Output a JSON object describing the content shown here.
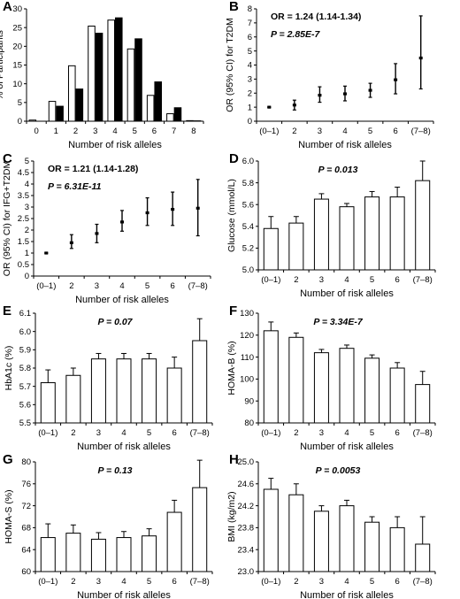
{
  "panels": [
    {
      "letter": "A",
      "chart_data": {
        "type": "bar",
        "ylabel": "% of Participants",
        "xlabel": "Number of risk alleles",
        "categories": [
          "0",
          "1",
          "2",
          "3",
          "4",
          "5",
          "6",
          "7",
          "8"
        ],
        "ylim": [
          0,
          30
        ],
        "yticks": [
          0,
          5,
          10,
          15,
          20,
          25,
          30
        ],
        "series": [
          {
            "fill": "#ffffff",
            "values": [
              0.3,
              5.3,
              14.8,
              25.4,
              27.0,
              19.3,
              6.9,
              2.0,
              0.15
            ]
          },
          {
            "fill": "#000000",
            "values": [
              0.0,
              4.0,
              8.6,
              23.5,
              27.6,
              22.0,
              10.5,
              3.6,
              0.1
            ]
          }
        ],
        "annotations": []
      }
    },
    {
      "letter": "B",
      "chart_data": {
        "type": "errorbar",
        "ylabel": "OR (95% CI) for T2DM",
        "xlabel": "Number of risk alleles",
        "categories": [
          "(0–1)",
          "2",
          "3",
          "4",
          "5",
          "6",
          "(7–8)"
        ],
        "ylim": [
          0,
          8
        ],
        "yticks": [
          0,
          1,
          2,
          3,
          4,
          5,
          6,
          7,
          8
        ],
        "values": [
          1.0,
          1.15,
          1.85,
          1.95,
          2.2,
          2.95,
          4.5
        ],
        "lower": [
          1.0,
          0.8,
          1.35,
          1.45,
          1.7,
          1.95,
          2.3
        ],
        "upper": [
          1.0,
          1.5,
          2.45,
          2.5,
          2.7,
          4.1,
          7.5
        ],
        "annotations": [
          {
            "text": "OR = 1.24 (1.14-1.34)",
            "italic": false
          },
          {
            "text": "P = 2.85E-7",
            "italic": true
          }
        ]
      }
    },
    {
      "letter": "C",
      "chart_data": {
        "type": "errorbar",
        "ylabel": "OR (95% CI) for IFG+T2DM",
        "xlabel": "Number of risk alleles",
        "categories": [
          "(0–1)",
          "2",
          "3",
          "4",
          "5",
          "6",
          "(7–8)"
        ],
        "ylim": [
          0,
          5
        ],
        "yticks": [
          0,
          0.5,
          1,
          1.5,
          2,
          2.5,
          3,
          3.5,
          4,
          4.5,
          5
        ],
        "values": [
          1.0,
          1.45,
          1.85,
          2.35,
          2.75,
          2.9,
          2.95
        ],
        "lower": [
          1.0,
          1.2,
          1.45,
          1.95,
          2.2,
          2.2,
          1.75
        ],
        "upper": [
          1.0,
          1.8,
          2.25,
          2.85,
          3.4,
          3.65,
          4.2
        ],
        "annotations": [
          {
            "text": "OR = 1.21 (1.14-1.28)",
            "italic": false
          },
          {
            "text": "P = 6.31E-11",
            "italic": true
          }
        ]
      }
    },
    {
      "letter": "D",
      "chart_data": {
        "type": "bar-error",
        "ylabel": "Glucose (mmol/L)",
        "xlabel": "Number of risk alleles",
        "categories": [
          "(0–1)",
          "2",
          "3",
          "4",
          "5",
          "6",
          "(7–8)"
        ],
        "ylim": [
          5.0,
          6.0
        ],
        "yticks": [
          5.0,
          5.2,
          5.4,
          5.6,
          5.8,
          6.0
        ],
        "tickFormat": 1,
        "values": [
          5.38,
          5.43,
          5.65,
          5.58,
          5.67,
          5.67,
          5.82
        ],
        "errors": [
          0.11,
          0.06,
          0.05,
          0.03,
          0.05,
          0.09,
          0.18
        ],
        "annotations": [
          {
            "text": "P = 0.013",
            "italic": true
          }
        ]
      }
    },
    {
      "letter": "E",
      "chart_data": {
        "type": "bar-error",
        "ylabel": "HbA1c (%)",
        "xlabel": "Number of risk alleles",
        "categories": [
          "(0–1)",
          "2",
          "3",
          "4",
          "5",
          "6",
          "(7–8)"
        ],
        "ylim": [
          5.5,
          6.1
        ],
        "yticks": [
          5.5,
          5.6,
          5.7,
          5.8,
          5.9,
          6.0,
          6.1
        ],
        "tickFormat": 1,
        "values": [
          5.72,
          5.76,
          5.85,
          5.85,
          5.85,
          5.8,
          5.95
        ],
        "errors": [
          0.07,
          0.04,
          0.03,
          0.03,
          0.03,
          0.06,
          0.12
        ],
        "annotations": [
          {
            "text": "P = 0.07",
            "italic": true
          }
        ]
      }
    },
    {
      "letter": "F",
      "chart_data": {
        "type": "bar-error",
        "ylabel": "HOMA-B (%)",
        "xlabel": "Number of risk alleles",
        "categories": [
          "(0–1)",
          "2",
          "3",
          "4",
          "5",
          "6",
          "(7–8)"
        ],
        "ylim": [
          80,
          130
        ],
        "yticks": [
          80,
          90,
          100,
          110,
          120,
          130
        ],
        "tickFormat": 0,
        "values": [
          122,
          119,
          112,
          114,
          109.5,
          105,
          97.5
        ],
        "errors": [
          4,
          2,
          1.5,
          1.5,
          1.5,
          2.5,
          6
        ],
        "annotations": [
          {
            "text": "P = 3.34E-7",
            "italic": true
          }
        ]
      }
    },
    {
      "letter": "G",
      "chart_data": {
        "type": "bar-error",
        "ylabel": "HOMA-S (%)",
        "xlabel": "Number of risk alleles",
        "categories": [
          "(0–1)",
          "2",
          "3",
          "4",
          "5",
          "6",
          "(7–8)"
        ],
        "ylim": [
          60,
          80
        ],
        "yticks": [
          60,
          64,
          68,
          72,
          76,
          80
        ],
        "tickFormat": 0,
        "values": [
          66.2,
          67.0,
          65.9,
          66.2,
          66.5,
          70.8,
          75.3
        ],
        "errors": [
          2.5,
          1.5,
          1.2,
          1.1,
          1.3,
          2.2,
          5.0
        ],
        "annotations": [
          {
            "text": "P = 0.13",
            "italic": true
          }
        ]
      }
    },
    {
      "letter": "H",
      "chart_data": {
        "type": "bar-error",
        "ylabel": "BMI (kg/m2)",
        "xlabel": "Number of risk alleles",
        "categories": [
          "(0–1)",
          "2",
          "3",
          "4",
          "5",
          "6",
          "(7–8)"
        ],
        "ylim": [
          23.0,
          25.0
        ],
        "yticks": [
          23.0,
          23.4,
          23.8,
          24.2,
          24.6,
          25.0
        ],
        "tickFormat": 1,
        "values": [
          24.5,
          24.4,
          24.1,
          24.2,
          23.9,
          23.8,
          23.5
        ],
        "errors": [
          0.2,
          0.2,
          0.1,
          0.1,
          0.1,
          0.2,
          0.5
        ],
        "annotations": [
          {
            "text": "P = 0.0053",
            "italic": true
          }
        ]
      }
    }
  ]
}
